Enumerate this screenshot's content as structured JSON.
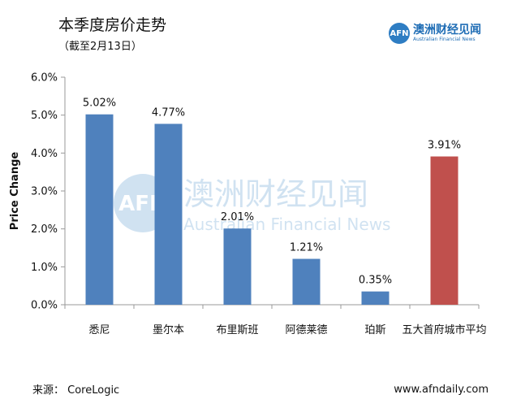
{
  "header": {
    "title": "本季度房价走势",
    "subtitle": "（截至2月13日）"
  },
  "logo": {
    "mark": "AFN",
    "name_cn": "澳洲财经见闻",
    "name_en": "Australian Financial News"
  },
  "watermark": {
    "name_cn": "澳洲财经见闻",
    "name_en": "Australian Financial News"
  },
  "footer": {
    "source": "来源：  CoreLogic",
    "website": "www.afndaily.com"
  },
  "chart_data": {
    "type": "bar",
    "title": "本季度房价走势",
    "subtitle": "（截至2月13日）",
    "ylabel": "Price Change",
    "xlabel": "",
    "ylim": [
      0,
      6
    ],
    "yticks": [
      "0.0%",
      "1.0%",
      "2.0%",
      "3.0%",
      "4.0%",
      "5.0%",
      "6.0%"
    ],
    "categories": [
      "悉尼",
      "墨尔本",
      "布里斯班",
      "阿德莱德",
      "珀斯",
      "五大首府城市平均"
    ],
    "values": [
      5.02,
      4.77,
      2.01,
      1.21,
      0.35,
      3.91
    ],
    "value_labels": [
      "5.02%",
      "4.77%",
      "2.01%",
      "1.21%",
      "0.35%",
      "3.91%"
    ],
    "colors": [
      "#4f81bd",
      "#4f81bd",
      "#4f81bd",
      "#4f81bd",
      "#4f81bd",
      "#c0504d"
    ],
    "grid": false,
    "legend": "none"
  }
}
